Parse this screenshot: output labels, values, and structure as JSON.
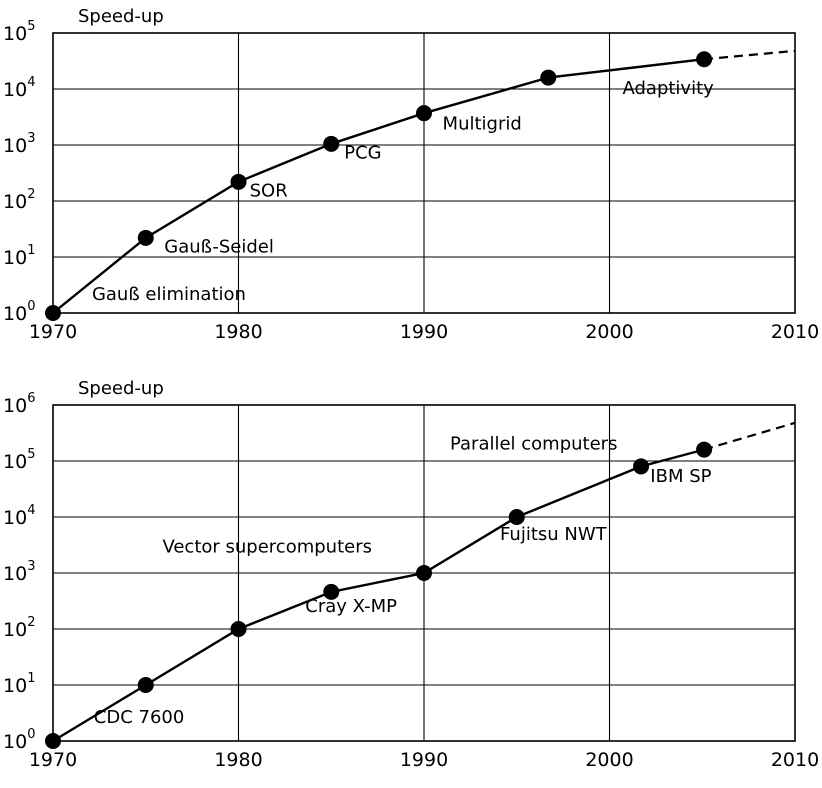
{
  "chart_data": [
    {
      "type": "line",
      "title": "",
      "ylabel": "Speed-up",
      "xlabel": "",
      "yscale": "log",
      "xlim": [
        1970,
        2010
      ],
      "ylim": [
        1,
        100000
      ],
      "grid": true,
      "x_ticks": [
        1970,
        1980,
        1990,
        2000,
        2010
      ],
      "y_ticks": [
        {
          "base": "10",
          "exp": "0"
        },
        {
          "base": "10",
          "exp": "1"
        },
        {
          "base": "10",
          "exp": "2"
        },
        {
          "base": "10",
          "exp": "3"
        },
        {
          "base": "10",
          "exp": "4"
        },
        {
          "base": "10",
          "exp": "5"
        }
      ],
      "series": [
        {
          "x": [
            1970,
            1975,
            1980,
            1985,
            1990,
            1996.7,
            2005.1
          ],
          "y": [
            1,
            22,
            220,
            1050,
            3700,
            16000,
            34000
          ]
        }
      ],
      "extrapolation": {
        "x": [
          2005.1,
          2010
        ],
        "y": [
          34000,
          48000
        ],
        "style": "dashed"
      },
      "annotations": [
        {
          "text": "Gauß elimination",
          "x": 1972.1,
          "y": 1.7
        },
        {
          "text": "Gauß-Seidel",
          "x": 1976.0,
          "y": 12
        },
        {
          "text": "SOR",
          "x": 1980.6,
          "y": 120
        },
        {
          "text": "PCG",
          "x": 1985.7,
          "y": 570
        },
        {
          "text": "Multigrid",
          "x": 1991.0,
          "y": 1900
        },
        {
          "text": "Adaptivity",
          "x": 2000.7,
          "y": 8200
        }
      ]
    },
    {
      "type": "line",
      "title": "",
      "ylabel": "Speed-up",
      "xlabel": "",
      "yscale": "log",
      "xlim": [
        1970,
        2010
      ],
      "ylim": [
        1,
        1000000
      ],
      "grid": true,
      "x_ticks": [
        1970,
        1980,
        1990,
        2000,
        2010
      ],
      "y_ticks": [
        {
          "base": "10",
          "exp": "0"
        },
        {
          "base": "10",
          "exp": "1"
        },
        {
          "base": "10",
          "exp": "2"
        },
        {
          "base": "10",
          "exp": "3"
        },
        {
          "base": "10",
          "exp": "4"
        },
        {
          "base": "10",
          "exp": "5"
        },
        {
          "base": "10",
          "exp": "6"
        }
      ],
      "series": [
        {
          "x": [
            1970,
            1975,
            1980,
            1985,
            1990,
            1995,
            2001.7,
            2005.1
          ],
          "y": [
            1,
            10,
            100,
            460,
            1000,
            10000,
            80000,
            160000
          ]
        }
      ],
      "extrapolation": {
        "x": [
          2005.1,
          2010
        ],
        "y": [
          160000,
          480000
        ],
        "style": "dashed"
      },
      "annotations": [
        {
          "text": "CDC 7600",
          "x": 1972.2,
          "y": 2.1
        },
        {
          "text": "Cray X-MP",
          "x": 1983.6,
          "y": 200
        },
        {
          "text": "Vector supercomputers",
          "x": 1975.9,
          "y": 2300
        },
        {
          "text": "Fujitsu NWT",
          "x": 1994.1,
          "y": 3900
        },
        {
          "text": "Parallel computers",
          "x": 1991.4,
          "y": 160000
        },
        {
          "text": "IBM SP",
          "x": 2002.2,
          "y": 42000
        }
      ]
    }
  ]
}
